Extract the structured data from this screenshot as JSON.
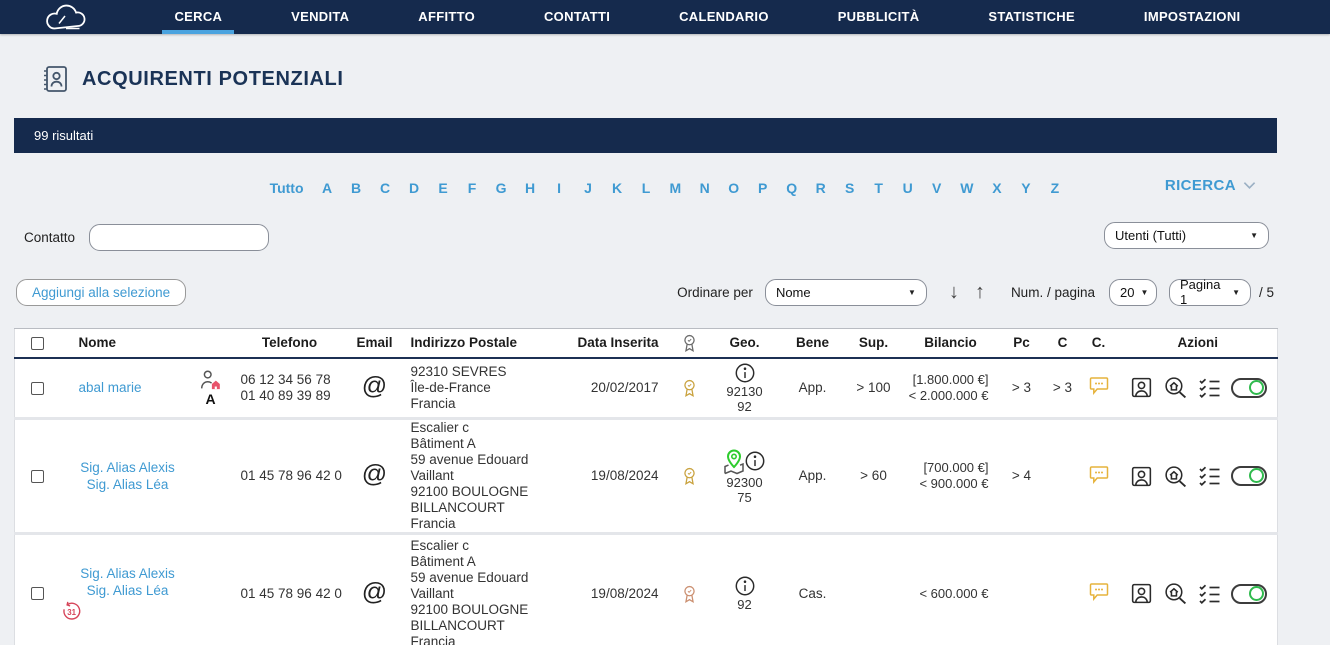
{
  "nav": {
    "items": [
      {
        "label": "CERCA",
        "active": true
      },
      {
        "label": "VENDITA",
        "active": false
      },
      {
        "label": "AFFITTO",
        "active": false
      },
      {
        "label": "CONTATTI",
        "active": false
      },
      {
        "label": "CALENDARIO",
        "active": false
      },
      {
        "label": "PUBBLICITÀ",
        "active": false
      },
      {
        "label": "STATISTICHE",
        "active": false
      },
      {
        "label": "IMPOSTAZIONI",
        "active": false
      }
    ]
  },
  "page": {
    "title": "ACQUIRENTI POTENZIALI",
    "results": "99 risultati"
  },
  "alphabet": {
    "all": "Tutto",
    "letters": [
      "A",
      "B",
      "C",
      "D",
      "E",
      "F",
      "G",
      "H",
      "I",
      "J",
      "K",
      "L",
      "M",
      "N",
      "O",
      "P",
      "Q",
      "R",
      "S",
      "T",
      "U",
      "V",
      "W",
      "X",
      "Y",
      "Z"
    ]
  },
  "search_panel": {
    "toggle_label": "RICERCA"
  },
  "filters": {
    "contact_label": "Contatto",
    "contact_value": "",
    "users_filter": "Utenti (Tutti)"
  },
  "toolbar": {
    "add_to_selection": "Aggiungi alla selezione",
    "order_by_label": "Ordinare per",
    "order_by_value": "Nome",
    "per_page_label": "Num. / pagina",
    "per_page_value": "20",
    "page_selector": "Pagina 1",
    "page_total": "/ 5"
  },
  "table": {
    "headers": {
      "name": "Nome",
      "phone": "Telefono",
      "email": "Email",
      "address": "Indirizzo Postale",
      "date": "Data Inserita",
      "geo": "Geo.",
      "property": "Bene",
      "surface": "Sup.",
      "budget": "Bilancio",
      "pc": "Pc",
      "c": "C",
      "comment": "C.",
      "actions": "Azioni"
    },
    "rows": [
      {
        "names": [
          "abal marie"
        ],
        "owner_initial": "A",
        "phones": [
          "06 12 34 56 78",
          "01 40 89 39 89"
        ],
        "address": [
          "92310 SEVRES",
          "Île-de-France",
          "Francia"
        ],
        "date": "20/02/2017",
        "geo": [
          "92130",
          "92"
        ],
        "property": "App.",
        "surface": "> 100",
        "budget": [
          "[1.800.000 €]",
          "< 2.000.000 €"
        ],
        "pc": "> 3",
        "c": "> 3"
      },
      {
        "names": [
          "Sig. Alias Alexis",
          "Sig. Alias Léa"
        ],
        "phones": [
          "01 45 78 96 42 0"
        ],
        "address": [
          "Escalier c",
          "Bâtiment A",
          "59 avenue Edouard Vaillant",
          "92100 BOULOGNE BILLANCOURT",
          "Francia"
        ],
        "date": "19/08/2024",
        "geo": [
          "92300",
          "75"
        ],
        "property": "App.",
        "surface": "> 60",
        "budget": [
          "[700.000 €]",
          "< 900.000 €"
        ],
        "pc": "> 4",
        "c": ""
      },
      {
        "names": [
          "Sig. Alias Alexis",
          "Sig. Alias Léa"
        ],
        "reminder_day": "31",
        "phones": [
          "01 45 78 96 42 0"
        ],
        "address": [
          "Escalier c",
          "Bâtiment A",
          "59 avenue Edouard Vaillant",
          "92100 BOULOGNE BILLANCOURT",
          "Francia"
        ],
        "date": "19/08/2024",
        "geo": [
          "92"
        ],
        "property": "Cas.",
        "surface": "",
        "budget": [
          "< 600.000 €"
        ],
        "pc": "",
        "c": ""
      }
    ]
  },
  "colors": {
    "navy": "#152a4d",
    "accent_blue": "#3f9ad2",
    "underline_blue": "#4aa3df",
    "medal_gold": "#c9a23e",
    "medal_bronze": "#cb8f70",
    "comment_yellow": "#e6b33c",
    "toggle_green": "#2fba4d",
    "reminder_red": "#d6455a",
    "house_red": "#e8536b",
    "pin_green": "#2ecc2e"
  }
}
